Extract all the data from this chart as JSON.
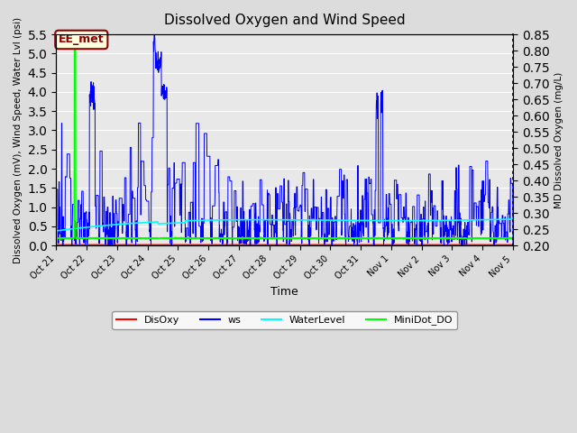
{
  "title": "Dissolved Oxygen and Wind Speed",
  "xlabel": "Time",
  "ylabel_left": "Dissolved Oxygen (mV), Wind Speed, Water Lvl (psi)",
  "ylabel_right": "MD Dissolved Oxygen (mg/L)",
  "ylim_left": [
    0.0,
    5.5
  ],
  "ylim_right": [
    0.2,
    0.85
  ],
  "yticks_left": [
    0.0,
    0.5,
    1.0,
    1.5,
    2.0,
    2.5,
    3.0,
    3.5,
    4.0,
    4.5,
    5.0,
    5.5
  ],
  "yticks_right": [
    0.2,
    0.25,
    0.3,
    0.35,
    0.4,
    0.45,
    0.5,
    0.55,
    0.6,
    0.65,
    0.7,
    0.75,
    0.8,
    0.85
  ],
  "annotation_text": "EE_met",
  "annotation_color": "#8B0000",
  "annotation_bg": "#FFFFE0",
  "annotation_border": "#8B0000",
  "fig_bg_color": "#DCDCDC",
  "plot_bg_color": "#E8E8E8",
  "disoxy_color": "#FF0000",
  "ws_color": "#0000FF",
  "waterlevel_color": "#00FFFF",
  "minidot_color": "#00FF00",
  "legend_labels": [
    "DisOxy",
    "ws",
    "WaterLevel",
    "MiniDot_DO"
  ],
  "x_tick_labels": [
    "Oct 21",
    "Oct 22",
    "Oct 23",
    "Oct 24",
    "Oct 25",
    "Oct 26",
    "Oct 27",
    "Oct 28",
    "Oct 29",
    "Oct 30",
    "Oct 31",
    "Nov 1",
    "Nov 2",
    "Nov 3",
    "Nov 4",
    "Nov 5"
  ],
  "num_points": 2000
}
